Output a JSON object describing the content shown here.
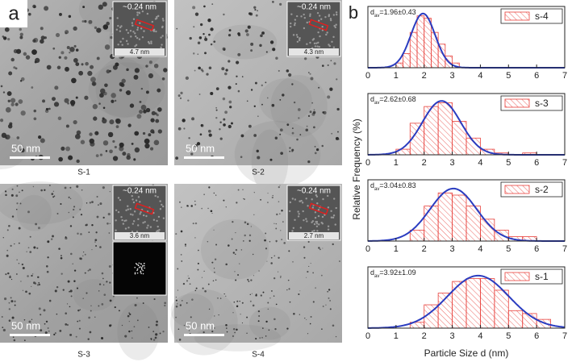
{
  "panel_a": {
    "label": "a",
    "images": [
      {
        "caption": "S-1",
        "scale_bar": "50 nm",
        "inset_spacing": "~0.24 nm",
        "inset_size": "4.7 nm"
      },
      {
        "caption": "S-2",
        "scale_bar": "50 nm",
        "inset_spacing": "~0.24 nm",
        "inset_size": "4.3 nm"
      },
      {
        "caption": "S-3",
        "scale_bar": "50 nm",
        "inset_spacing": "~0.24 nm",
        "inset_size": "3.6 nm"
      },
      {
        "caption": "S-4",
        "scale_bar": "50 nm",
        "inset_spacing": "~0.24 nm",
        "inset_size": "2.7 nm"
      }
    ]
  },
  "panel_b": {
    "label": "b",
    "xlabel": "Particle Size d (nm)",
    "ylabel": "Relative Frequency (%)"
  },
  "chart_data": [
    {
      "type": "histogram",
      "bins": [
        1.0,
        1.25,
        1.5,
        1.75,
        2.0,
        2.25,
        2.5,
        2.75,
        3.0,
        3.25
      ],
      "series": [
        {
          "name": "s-4",
          "color": "#e8413c",
          "values": [
            2,
            6,
            15,
            22,
            21,
            15,
            10,
            5,
            2
          ]
        }
      ],
      "fit": {
        "mean": 1.96,
        "sd": 0.43,
        "peak": 23,
        "color": "#2a3cc0"
      },
      "annotation": {
        "symbol": "d",
        "subscript": "av",
        "text": "=1.96±0.43"
      },
      "xlim": [
        0,
        7
      ],
      "xticks": [
        0,
        1,
        2,
        3,
        4,
        5,
        6,
        7
      ],
      "ylim": [
        0,
        26
      ],
      "legend": "upper right"
    },
    {
      "type": "histogram",
      "bins": [
        1.0,
        1.5,
        2.0,
        2.5,
        3.0,
        3.5,
        4.0,
        4.5,
        5.0,
        5.5,
        6.0
      ],
      "series": [
        {
          "name": "s-3",
          "color": "#e8413c",
          "values": [
            3,
            17,
            26,
            28,
            18,
            9,
            3,
            1,
            0,
            1
          ]
        }
      ],
      "fit": {
        "mean": 2.62,
        "sd": 0.68,
        "peak": 29,
        "color": "#2a3cc0"
      },
      "annotation": {
        "symbol": "d",
        "subscript": "av",
        "text": "=2.62±0.68"
      },
      "xlim": [
        0,
        7
      ],
      "xticks": [
        0,
        1,
        2,
        3,
        4,
        5,
        6,
        7
      ],
      "ylim": [
        0,
        33
      ],
      "legend": "upper right"
    },
    {
      "type": "histogram",
      "bins": [
        1.5,
        2.0,
        2.5,
        3.0,
        3.5,
        4.0,
        4.5,
        5.0,
        5.5,
        6.0
      ],
      "series": [
        {
          "name": "s-2",
          "color": "#e8413c",
          "values": [
            5,
            16,
            22,
            21,
            16,
            10,
            5,
            2,
            2
          ]
        }
      ],
      "fit": {
        "mean": 3.04,
        "sd": 0.83,
        "peak": 24,
        "color": "#2a3cc0"
      },
      "annotation": {
        "symbol": "d",
        "subscript": "av",
        "text": "=3.04±0.83"
      },
      "xlim": [
        0,
        7
      ],
      "xticks": [
        0,
        1,
        2,
        3,
        4,
        5,
        6,
        7
      ],
      "ylim": [
        0,
        28
      ],
      "legend": "upper right"
    },
    {
      "type": "histogram",
      "bins": [
        1.5,
        2.0,
        2.5,
        3.0,
        3.5,
        4.0,
        4.5,
        5.0,
        5.5,
        6.0,
        6.5
      ],
      "series": [
        {
          "name": "s-1",
          "color": "#e8413c",
          "values": [
            2,
            8,
            12,
            16,
            17,
            17,
            13,
            6,
            5,
            3
          ]
        }
      ],
      "fit": {
        "mean": 3.92,
        "sd": 1.09,
        "peak": 18,
        "color": "#2a3cc0"
      },
      "annotation": {
        "symbol": "d",
        "subscript": "av",
        "text": "=3.92±1.09"
      },
      "xlim": [
        0,
        7
      ],
      "xticks": [
        0,
        1,
        2,
        3,
        4,
        5,
        6,
        7
      ],
      "ylim": [
        0,
        21
      ],
      "legend": "upper right"
    }
  ]
}
